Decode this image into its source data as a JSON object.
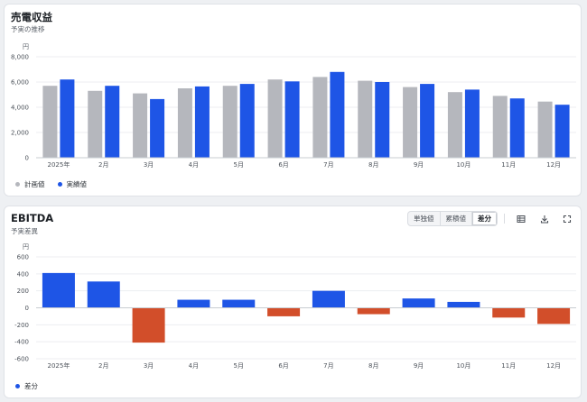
{
  "charts": [
    {
      "title": "売電収益",
      "subtitle": "予実の推移",
      "legend": [
        {
          "name": "計画値",
          "color": "#b5b7bd"
        },
        {
          "name": "実績値",
          "color": "#1e55e6"
        }
      ]
    },
    {
      "title": "EBITDA",
      "subtitle": "予実差異",
      "legend": [
        {
          "name": "差分",
          "color": "#1e55e6"
        }
      ],
      "toggle": {
        "options": [
          "単独値",
          "累積値",
          "差分"
        ],
        "active": "差分"
      },
      "tools": [
        "table-icon",
        "download-icon",
        "fullscreen-icon"
      ]
    }
  ],
  "chart_data": [
    {
      "type": "bar",
      "title": "売電収益",
      "subtitle": "予実の推移",
      "unit_label": "円",
      "categories": [
        "2025年",
        "2月",
        "3月",
        "4月",
        "5月",
        "6月",
        "7月",
        "8月",
        "9月",
        "10月",
        "11月",
        "12月"
      ],
      "series": [
        {
          "name": "計画値",
          "color": "#b5b7bd",
          "values": [
            5700,
            5300,
            5100,
            5500,
            5700,
            6200,
            6400,
            6100,
            5600,
            5200,
            4900,
            4450
          ]
        },
        {
          "name": "実績値",
          "color": "#1e55e6",
          "values": [
            6200,
            5700,
            4650,
            5650,
            5850,
            6050,
            6800,
            6000,
            5850,
            5400,
            4700,
            4200
          ]
        }
      ],
      "yticks": [
        0,
        2000,
        4000,
        6000,
        8000
      ],
      "ytick_labels": [
        "0",
        "2,000",
        "4,000",
        "6,000",
        "8,000"
      ],
      "ylim": [
        0,
        8000
      ],
      "grid": true,
      "legend_position": "bottom-left"
    },
    {
      "type": "bar",
      "title": "EBITDA",
      "subtitle": "予実差異",
      "unit_label": "円",
      "categories": [
        "2025年",
        "2月",
        "3月",
        "4月",
        "5月",
        "6月",
        "7月",
        "8月",
        "9月",
        "10月",
        "11月",
        "12月"
      ],
      "series": [
        {
          "name": "差分",
          "values": [
            410,
            310,
            -410,
            95,
            95,
            -100,
            200,
            -75,
            110,
            70,
            -115,
            -190
          ]
        }
      ],
      "positive_color": "#1e55e6",
      "negative_color": "#d24e2a",
      "yticks": [
        -600,
        -400,
        -200,
        0,
        200,
        400,
        600
      ],
      "ytick_labels": [
        "-600",
        "-400",
        "-200",
        "0",
        "200",
        "400",
        "600"
      ],
      "ylim": [
        -600,
        600
      ],
      "grid": true,
      "legend_position": "bottom-left"
    }
  ]
}
